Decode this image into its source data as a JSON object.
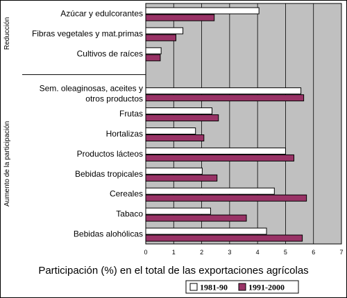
{
  "chart_data": {
    "type": "bar",
    "orientation": "horizontal",
    "xlabel": "Participación (%) en el total de las exportaciones agrícolas",
    "xlim": [
      0,
      7
    ],
    "xticks": [
      "0",
      "1",
      "2",
      "3",
      "4",
      "5",
      "6",
      "7"
    ],
    "grid": true,
    "legend_position": "bottom-right",
    "groups": [
      {
        "name": "Reducción",
        "categories": [
          "Azúcar y edulcorantes",
          "Fibras vegetales y mat.primas",
          "Cultivos de raíces"
        ]
      },
      {
        "name": "Aumento de la participación",
        "categories": [
          "Sem. oleaginosas, aceites y otros productos",
          "Frutas",
          "Hortalizas",
          "Productos lácteos",
          "Bebidas tropicales",
          "Cereales",
          "Tabaco",
          "Bebidas alohólicas"
        ]
      }
    ],
    "categories": [
      "Azúcar y edulcorantes",
      "Fibras vegetales y mat.primas",
      "Cultivos de raíces",
      "",
      "Sem. oleaginosas, aceites y otros productos",
      "Frutas",
      "Hortalizas",
      "Productos lácteos",
      "Bebidas tropicales",
      "Cereales",
      "Tabaco",
      "Bebidas alohólicas"
    ],
    "category_lines": [
      [
        "Azúcar y edulcorantes"
      ],
      [
        "Fibras vegetales y mat.primas"
      ],
      [
        "Cultivos de raíces"
      ],
      [],
      [
        "Sem. oleaginosas, aceites y",
        "otros productos"
      ],
      [
        "Frutas"
      ],
      [
        "Hortalizas"
      ],
      [
        "Productos lácteos"
      ],
      [
        "Bebidas tropicales"
      ],
      [
        "Cereales"
      ],
      [
        "Tabaco"
      ],
      [
        "Bebidas alohólicas"
      ]
    ],
    "series": [
      {
        "name": "1981-90",
        "color": "#ffffff",
        "values": [
          4.05,
          1.33,
          0.55,
          null,
          5.55,
          2.37,
          1.78,
          5.0,
          2.02,
          4.6,
          2.32,
          4.32
        ]
      },
      {
        "name": "1991-2000",
        "color": "#993366",
        "values": [
          2.45,
          1.08,
          0.52,
          null,
          5.65,
          2.6,
          2.08,
          5.3,
          2.55,
          5.75,
          3.6,
          5.6
        ]
      }
    ]
  },
  "colors": {
    "plot_background": "#c0c0c0",
    "series_1": "#ffffff",
    "series_2": "#993366"
  }
}
